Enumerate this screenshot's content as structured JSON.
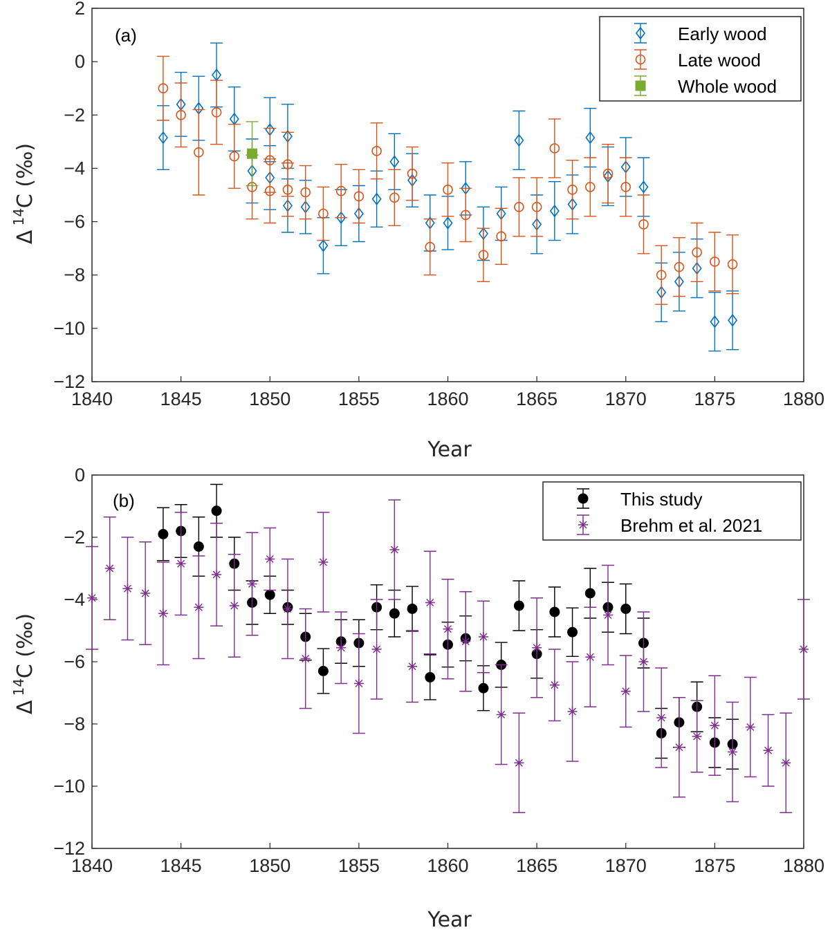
{
  "chart_data": [
    {
      "type": "scatter",
      "panel_label": "(a)",
      "xlabel": "Year",
      "ylabel_delta": "Δ",
      "ylabel_sup": "14",
      "ylabel_rest": "C (‰)",
      "xlim": [
        1840,
        1880
      ],
      "ylim": [
        -12,
        2
      ],
      "xticks": [
        1840,
        1845,
        1850,
        1855,
        1860,
        1865,
        1870,
        1875,
        1880
      ],
      "yticks": [
        -12,
        -10,
        -8,
        -6,
        -4,
        -2,
        0,
        2
      ],
      "tick_labels_x": [
        "1840",
        "1845",
        "1850",
        "1855",
        "1860",
        "1865",
        "1870",
        "1875",
        "1880"
      ],
      "tick_labels_y": [
        "−12",
        "−10",
        "−8",
        "−6",
        "−4",
        "−2",
        "0",
        "2"
      ],
      "legend_position": "top-right",
      "series": [
        {
          "name": "Early wood",
          "color": "#0072BD",
          "marker": "diamond",
          "x": [
            1844,
            1845,
            1846,
            1847,
            1848,
            1849,
            1850,
            1850,
            1851,
            1851,
            1852,
            1853,
            1854,
            1855,
            1856,
            1857,
            1858,
            1859,
            1860,
            1861,
            1862,
            1863,
            1864,
            1865,
            1866,
            1867,
            1868,
            1869,
            1870,
            1871,
            1872,
            1873,
            1874,
            1875,
            1876
          ],
          "y": [
            -2.85,
            -1.6,
            -1.75,
            -0.5,
            -2.15,
            -4.1,
            -2.55,
            -4.35,
            -2.8,
            -5.4,
            -5.45,
            -6.9,
            -5.85,
            -5.7,
            -5.15,
            -3.75,
            -4.45,
            -6.05,
            -6.05,
            -4.75,
            -6.45,
            -5.7,
            -2.95,
            -6.1,
            -5.6,
            -5.35,
            -2.85,
            -4.3,
            -3.95,
            -4.7,
            -8.65,
            -8.25,
            -7.75,
            -9.75,
            -9.7
          ],
          "err": [
            1.2,
            1.2,
            1.2,
            1.2,
            1.2,
            1.2,
            1.2,
            1.2,
            1.2,
            1.0,
            1.0,
            1.05,
            1.05,
            1.05,
            1.05,
            1.05,
            1.0,
            1.05,
            1.0,
            1.0,
            1.0,
            1.0,
            1.1,
            1.1,
            1.1,
            1.1,
            1.1,
            1.1,
            1.1,
            1.1,
            1.1,
            1.1,
            1.1,
            1.1,
            1.1
          ]
        },
        {
          "name": "Late wood",
          "color": "#D95319",
          "marker": "circle",
          "x": [
            1844,
            1845,
            1846,
            1847,
            1848,
            1849,
            1850,
            1850,
            1851,
            1851,
            1852,
            1853,
            1854,
            1855,
            1856,
            1857,
            1858,
            1859,
            1860,
            1861,
            1862,
            1863,
            1864,
            1865,
            1866,
            1867,
            1868,
            1869,
            1870,
            1871,
            1872,
            1873,
            1874,
            1875,
            1876
          ],
          "y": [
            -1.0,
            -2.0,
            -3.4,
            -1.9,
            -3.55,
            -4.7,
            -3.7,
            -4.85,
            -3.85,
            -4.8,
            -4.9,
            -5.7,
            -4.85,
            -5.05,
            -3.35,
            -5.1,
            -4.2,
            -6.95,
            -4.8,
            -5.75,
            -7.25,
            -6.55,
            -5.45,
            -5.45,
            -3.25,
            -4.8,
            -4.7,
            -4.2,
            -4.7,
            -6.1,
            -8.0,
            -7.7,
            -7.15,
            -7.5,
            -7.6
          ],
          "err": [
            1.2,
            1.2,
            1.6,
            1.2,
            1.2,
            1.2,
            1.2,
            1.2,
            1.2,
            1.0,
            1.0,
            1.0,
            1.0,
            1.0,
            1.05,
            1.05,
            1.0,
            1.05,
            1.0,
            1.0,
            1.0,
            1.05,
            1.1,
            1.1,
            1.1,
            1.1,
            1.1,
            1.1,
            1.1,
            1.1,
            1.1,
            1.1,
            1.1,
            1.1,
            1.1
          ]
        },
        {
          "name": "Whole wood",
          "color": "#77AC30",
          "marker": "square",
          "x": [
            1849
          ],
          "y": [
            -3.45
          ],
          "err": [
            1.2
          ]
        }
      ]
    },
    {
      "type": "scatter",
      "panel_label": "(b)",
      "xlabel": "Year",
      "ylabel_delta": "Δ",
      "ylabel_sup": "14",
      "ylabel_rest": "C (‰)",
      "xlim": [
        1840,
        1880
      ],
      "ylim": [
        -12,
        0
      ],
      "xticks": [
        1840,
        1845,
        1850,
        1855,
        1860,
        1865,
        1870,
        1875,
        1880
      ],
      "yticks": [
        -12,
        -10,
        -8,
        -6,
        -4,
        -2,
        0
      ],
      "tick_labels_x": [
        "1840",
        "1845",
        "1850",
        "1855",
        "1860",
        "1865",
        "1870",
        "1875",
        "1880"
      ],
      "tick_labels_y": [
        "−12",
        "−10",
        "−8",
        "−6",
        "−4",
        "−2",
        "0"
      ],
      "legend_position": "top-right",
      "series": [
        {
          "name": "This study",
          "color": "#000000",
          "marker": "filled-circle",
          "x": [
            1844,
            1845,
            1846,
            1847,
            1848,
            1849,
            1850,
            1851,
            1852,
            1853,
            1854,
            1855,
            1856,
            1857,
            1858,
            1859,
            1860,
            1861,
            1862,
            1863,
            1864,
            1865,
            1866,
            1867,
            1868,
            1869,
            1870,
            1871,
            1872,
            1873,
            1874,
            1875,
            1876
          ],
          "y": [
            -1.9,
            -1.8,
            -2.3,
            -1.15,
            -2.85,
            -4.1,
            -3.85,
            -4.25,
            -5.2,
            -6.3,
            -5.35,
            -5.4,
            -4.25,
            -4.45,
            -4.3,
            -6.5,
            -5.45,
            -5.25,
            -6.85,
            -6.1,
            -4.2,
            -5.75,
            -4.4,
            -5.05,
            -3.8,
            -4.25,
            -4.3,
            -5.4,
            -8.3,
            -7.95,
            -7.45,
            -8.6,
            -8.65
          ],
          "err": [
            0.85,
            0.85,
            0.95,
            0.85,
            0.85,
            0.7,
            0.6,
            0.55,
            0.75,
            0.72,
            0.7,
            0.75,
            0.72,
            0.75,
            0.72,
            0.72,
            0.72,
            0.72,
            0.72,
            0.72,
            0.8,
            0.78,
            0.8,
            0.78,
            0.8,
            0.8,
            0.8,
            0.8,
            0.8,
            0.8,
            0.8,
            0.8,
            0.8
          ]
        },
        {
          "name": "Brehm et al. 2021",
          "color": "#7E2F8E",
          "marker": "asterisk",
          "x": [
            1840,
            1841,
            1842,
            1843,
            1844,
            1845,
            1846,
            1847,
            1848,
            1849,
            1850,
            1851,
            1852,
            1853,
            1854,
            1855,
            1856,
            1857,
            1858,
            1859,
            1860,
            1861,
            1862,
            1863,
            1864,
            1865,
            1866,
            1867,
            1868,
            1869,
            1870,
            1871,
            1872,
            1873,
            1874,
            1875,
            1876,
            1877,
            1878,
            1879,
            1880
          ],
          "y": [
            -3.95,
            -3.0,
            -3.65,
            -3.8,
            -4.45,
            -2.85,
            -4.25,
            -3.2,
            -4.2,
            -3.5,
            -2.7,
            -4.3,
            -5.9,
            -2.8,
            -5.55,
            -6.7,
            -5.6,
            -2.4,
            -6.15,
            -4.1,
            -4.95,
            -5.35,
            -5.2,
            -7.7,
            -9.25,
            -5.55,
            -6.75,
            -7.6,
            -5.85,
            -4.5,
            -6.95,
            -6.0,
            -7.8,
            -8.75,
            -8.4,
            -8.05,
            -8.9,
            -8.1,
            -8.85,
            -9.25,
            -5.6
          ],
          "err": [
            1.65,
            1.65,
            1.65,
            1.65,
            1.65,
            1.65,
            1.65,
            1.65,
            1.65,
            1.65,
            1.0,
            1.6,
            1.6,
            1.6,
            1.15,
            1.6,
            1.6,
            1.6,
            1.15,
            1.65,
            1.6,
            1.6,
            1.15,
            1.6,
            1.6,
            1.6,
            1.15,
            1.6,
            1.6,
            1.6,
            1.15,
            1.6,
            1.6,
            1.6,
            1.15,
            1.6,
            1.6,
            1.6,
            1.15,
            1.6,
            1.6
          ]
        }
      ]
    }
  ]
}
